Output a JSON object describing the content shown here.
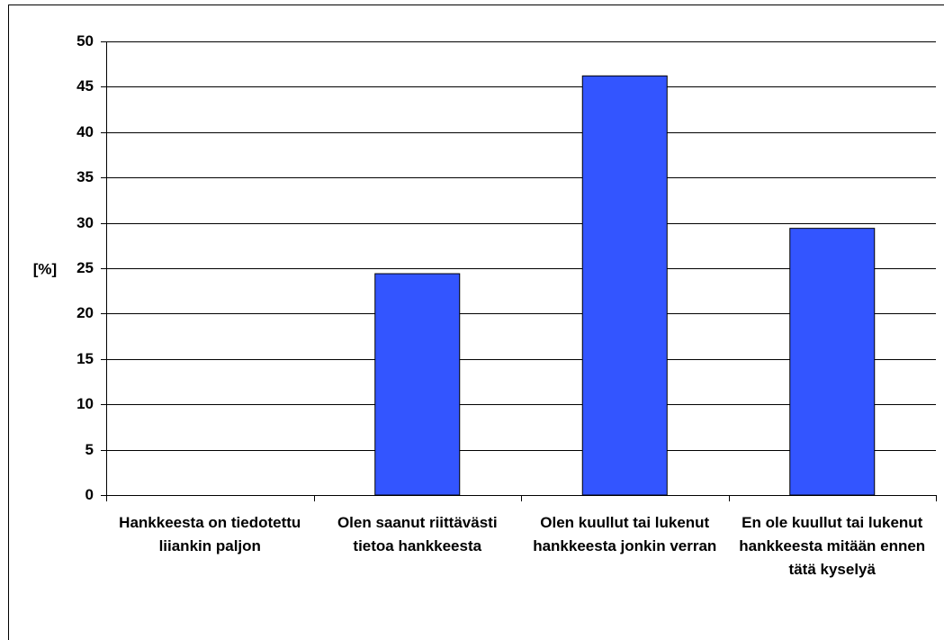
{
  "chart_data": {
    "type": "bar",
    "y_label": "[%]",
    "categories": [
      "Hankkeesta on tiedotettu liiankin paljon",
      "Olen saanut riittävästi tietoa hankkeesta",
      "Olen kuullut tai lukenut hankkeesta jonkin verran",
      "En ole kuullut tai lukenut hankkeesta mitään ennen tätä kyselyä"
    ],
    "values": [
      0,
      24.4,
      46.2,
      29.4
    ],
    "color": "#3355ff",
    "ylim": [
      0,
      50
    ],
    "yticks": [
      0,
      5,
      10,
      15,
      20,
      25,
      30,
      35,
      40,
      45,
      50
    ],
    "grid": true
  }
}
